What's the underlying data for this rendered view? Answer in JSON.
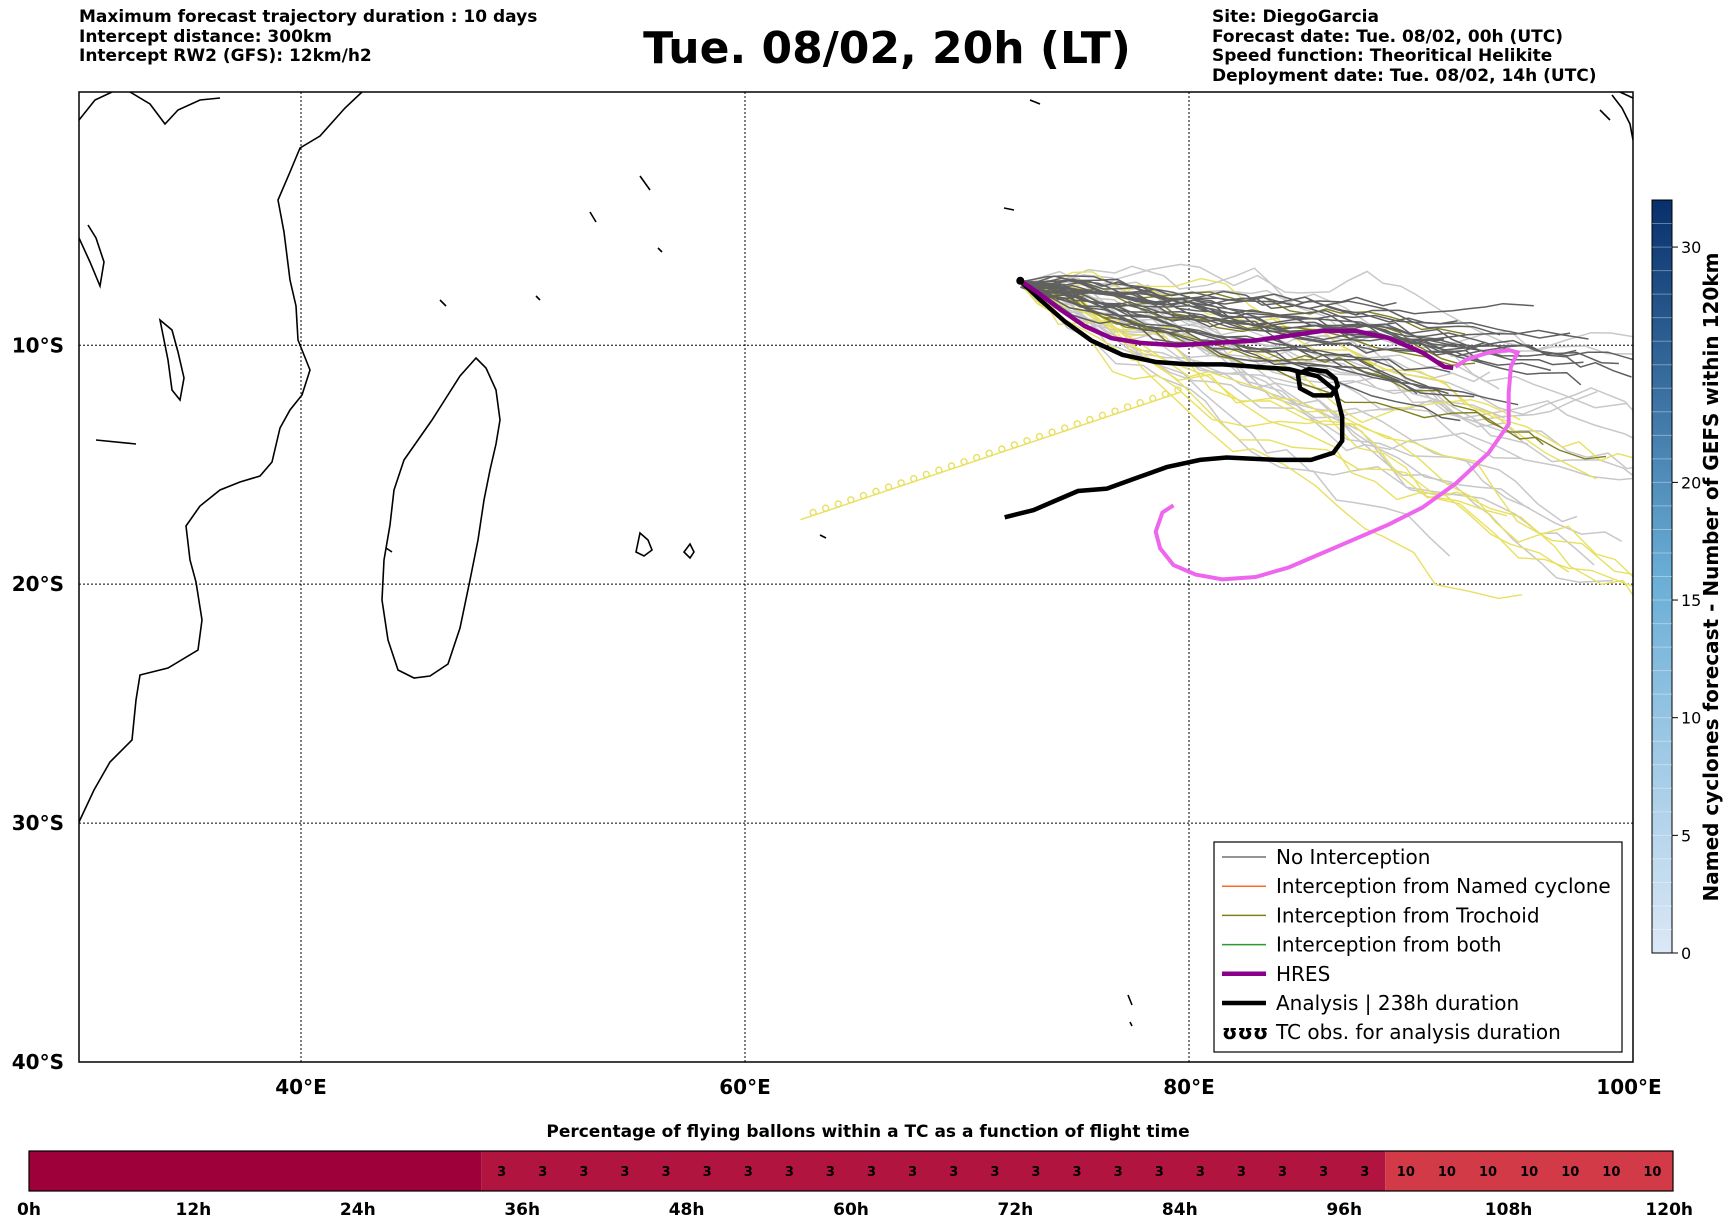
{
  "header": {
    "left": [
      "Maximum forecast trajectory duration : 10 days",
      "Intercept distance: 300km",
      "Intercept RW2 (GFS):  12km/h2"
    ],
    "title": "Tue. 08/02, 20h (LT)",
    "right": [
      "Site: DiegoGarcia",
      "Forecast date: Tue. 08/02, 00h (UTC)",
      "Speed function: Theoritical Helikite",
      "Deployment date: Tue. 08/02, 14h (UTC)"
    ]
  },
  "map": {
    "extent": {
      "lon": [
        30,
        100
      ],
      "lat": [
        -40,
        0.6
      ]
    },
    "lat_ticks": [
      {
        "value": -10,
        "label": "10°S"
      },
      {
        "value": -20,
        "label": "20°S"
      },
      {
        "value": -30,
        "label": "30°S"
      },
      {
        "value": -40,
        "label": "40°S"
      }
    ],
    "lon_ticks": [
      {
        "value": 40,
        "label": "40°E"
      },
      {
        "value": 60,
        "label": "60°E"
      },
      {
        "value": 80,
        "label": "80°E"
      },
      {
        "value": 100,
        "label": "100°E"
      }
    ],
    "grid": true
  },
  "legend": {
    "placement": "lower-right",
    "entries": [
      {
        "label": "No Interception",
        "color": "#707070",
        "style": "thin"
      },
      {
        "label": "Interception from Named cyclone",
        "color": "#ff6a2a",
        "style": "thin"
      },
      {
        "label": "Interception from Trochoid",
        "color": "#808020",
        "style": "thin"
      },
      {
        "label": "Interception from both",
        "color": "#2a9a2a",
        "style": "thin"
      },
      {
        "label": "HRES",
        "color": "#8b008b",
        "style": "thick"
      },
      {
        "label": "Analysis | 238h duration",
        "color": "#000000",
        "style": "thick"
      },
      {
        "label": "TC obs. for analysis duration",
        "color": "#000000",
        "style": "symbol",
        "symbol": "ʊʊʊ"
      }
    ]
  },
  "colorbar": {
    "label": "Named cyclones forecast - Number of GEFS within 120km",
    "min": 0,
    "max": 32,
    "ticks": [
      {
        "value": 0,
        "label": "0"
      },
      {
        "value": 5,
        "label": "5"
      },
      {
        "value": 10,
        "label": "10"
      },
      {
        "value": 15,
        "label": "15"
      },
      {
        "value": 20,
        "label": "20"
      },
      {
        "value": 30,
        "label": "30"
      }
    ],
    "color_low": "#dbe8f6",
    "color_high": "#08306b"
  },
  "flight_bar": {
    "title": "Percentage of flying ballons within a TC as a function of flight time",
    "max_hours": 120,
    "ticks": [
      {
        "hours": 0,
        "label": "0h"
      },
      {
        "hours": 12,
        "label": "12h"
      },
      {
        "hours": 24,
        "label": "24h"
      },
      {
        "hours": 36,
        "label": "36h"
      },
      {
        "hours": 48,
        "label": "48h"
      },
      {
        "hours": 60,
        "label": "60h"
      },
      {
        "hours": 72,
        "label": "72h"
      },
      {
        "hours": 84,
        "label": "84h"
      },
      {
        "hours": 96,
        "label": "96h"
      },
      {
        "hours": 108,
        "label": "108h"
      },
      {
        "hours": 120,
        "label": "120h"
      }
    ],
    "segments": [
      {
        "from_h": 0,
        "to_h": 33,
        "percent": 0,
        "color": "#9e003a"
      },
      {
        "from_h": 33,
        "to_h": 99,
        "percent": 3,
        "color": "#b0143f"
      },
      {
        "from_h": 99,
        "to_h": 120,
        "percent": 10,
        "color": "#d23a47"
      }
    ],
    "cell_hours": 3
  },
  "tracks": {
    "site": {
      "lon": 72.4,
      "lat": -7.3
    },
    "hres": [
      [
        72.4,
        -7.3
      ],
      [
        73.2,
        -7.8
      ],
      [
        74.2,
        -8.5
      ],
      [
        75.3,
        -9.2
      ],
      [
        76.5,
        -9.7
      ],
      [
        77.8,
        -9.9
      ],
      [
        79.5,
        -10.0
      ],
      [
        81.2,
        -9.9
      ],
      [
        83,
        -9.8
      ],
      [
        84.5,
        -9.6
      ],
      [
        86,
        -9.4
      ],
      [
        87.5,
        -9.4
      ],
      [
        89,
        -9.7
      ],
      [
        90.5,
        -10.3
      ],
      [
        91.5,
        -10.9
      ],
      [
        91.9,
        -10.95
      ]
    ],
    "analysis": [
      [
        72.4,
        -7.3
      ],
      [
        73.3,
        -8.1
      ],
      [
        74.4,
        -9.0
      ],
      [
        75.6,
        -9.8
      ],
      [
        77,
        -10.4
      ],
      [
        78.5,
        -10.7
      ],
      [
        80,
        -10.8
      ],
      [
        81.5,
        -10.8
      ],
      [
        83,
        -10.9
      ],
      [
        84.5,
        -11.0
      ],
      [
        85.8,
        -11.3
      ],
      [
        86.6,
        -11.9
      ],
      [
        86.9,
        -13.0
      ],
      [
        86.9,
        -14.0
      ],
      [
        86.5,
        -14.5
      ],
      [
        85.5,
        -14.8
      ],
      [
        84,
        -14.8
      ],
      [
        81.7,
        -14.7
      ],
      [
        80.5,
        -14.8
      ],
      [
        79,
        -15.1
      ],
      [
        77.5,
        -15.6
      ],
      [
        76.3,
        -16.0
      ],
      [
        75.0,
        -16.1
      ],
      [
        74,
        -16.5
      ],
      [
        73,
        -16.9
      ],
      [
        71.7,
        -17.2
      ]
    ],
    "analysis_loop": [
      [
        86.6,
        -11.4
      ],
      [
        86.2,
        -11.1
      ],
      [
        85.4,
        -11.0
      ],
      [
        84.9,
        -11.2
      ],
      [
        85.0,
        -11.8
      ],
      [
        85.6,
        -12.1
      ],
      [
        86.4,
        -12.1
      ],
      [
        86.7,
        -11.7
      ]
    ],
    "pink": [
      [
        79.3,
        -16.7
      ],
      [
        78.8,
        -17.0
      ],
      [
        78.5,
        -17.8
      ],
      [
        78.7,
        -18.5
      ],
      [
        79.3,
        -19.2
      ],
      [
        80.3,
        -19.6
      ],
      [
        81.5,
        -19.8
      ],
      [
        83,
        -19.7
      ],
      [
        84.5,
        -19.3
      ],
      [
        86,
        -18.7
      ],
      [
        87.5,
        -18.1
      ],
      [
        89,
        -17.5
      ],
      [
        90.5,
        -16.8
      ],
      [
        92,
        -15.8
      ],
      [
        93.5,
        -14.5
      ],
      [
        94.4,
        -13.3
      ],
      [
        94.4,
        -12.0
      ],
      [
        94.5,
        -10.9
      ],
      [
        94.8,
        -10.3
      ],
      [
        94.4,
        -10.2
      ],
      [
        93.5,
        -10.3
      ],
      [
        92.5,
        -10.6
      ],
      [
        92.0,
        -10.9
      ]
    ]
  }
}
